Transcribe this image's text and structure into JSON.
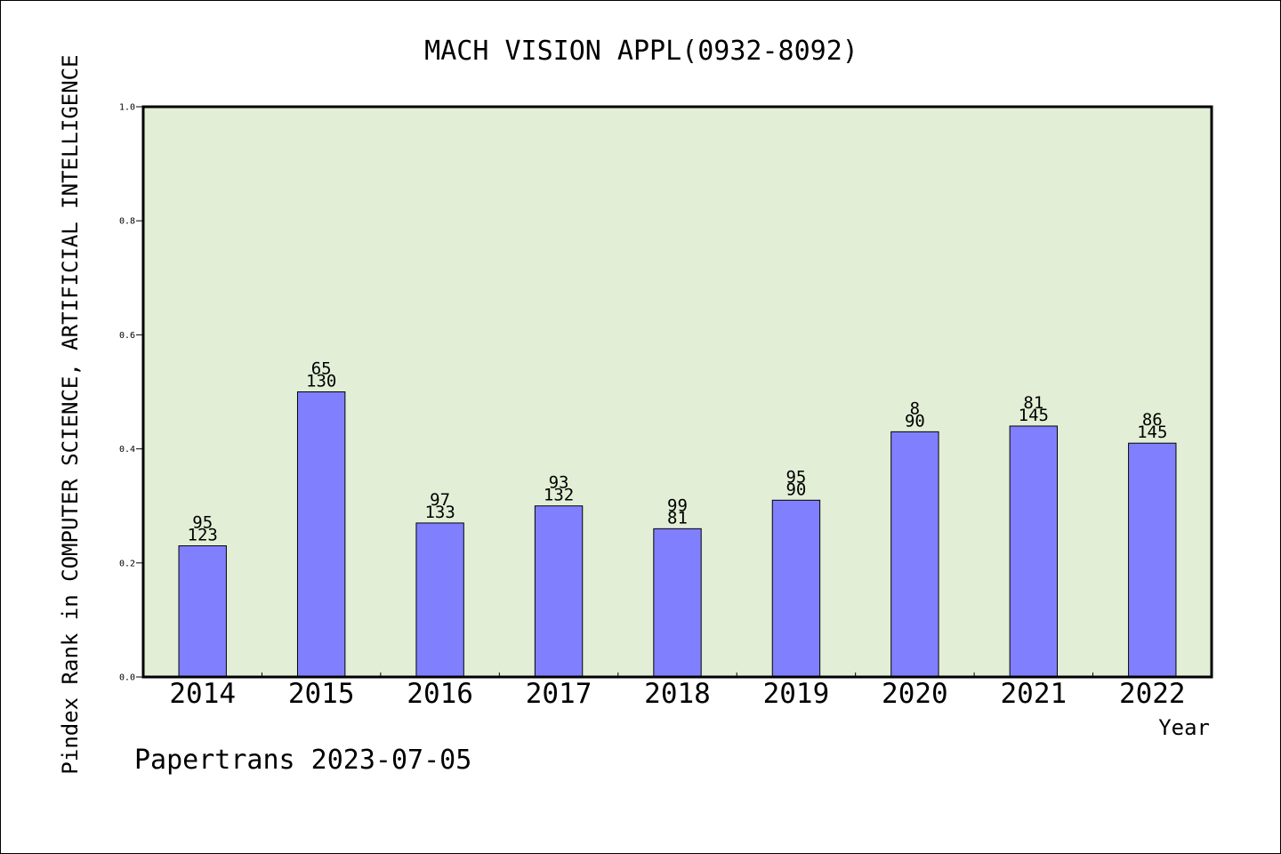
{
  "chart_data": {
    "type": "bar",
    "title": "MACH VISION APPL(0932-8092)",
    "xlabel": "Year",
    "ylabel": "Pindex Rank in COMPUTER SCIENCE, ARTIFICIAL INTELLIGENCE",
    "ylim": [
      0,
      1.0
    ],
    "yticks": [
      "0.0",
      "0.2",
      "0.4",
      "0.6",
      "0.8",
      "1.0"
    ],
    "grid": false,
    "categories": [
      "2014",
      "2015",
      "2016",
      "2017",
      "2018",
      "2019",
      "2020",
      "2021",
      "2022"
    ],
    "values": [
      0.23,
      0.5,
      0.27,
      0.3,
      0.26,
      0.31,
      0.43,
      0.44,
      0.41
    ],
    "rank_labels": [
      "95",
      "65",
      "97",
      "93",
      "99",
      "95",
      "8",
      "81",
      "86"
    ],
    "total_labels": [
      "123",
      "130",
      "133",
      "132",
      "81",
      "90",
      "90",
      "145",
      "145"
    ],
    "colors": {
      "bar": "#8080ff",
      "plot_bg": "#e2efd6",
      "axis": "#000000"
    }
  },
  "footer": "Papertrans 2023-07-05"
}
